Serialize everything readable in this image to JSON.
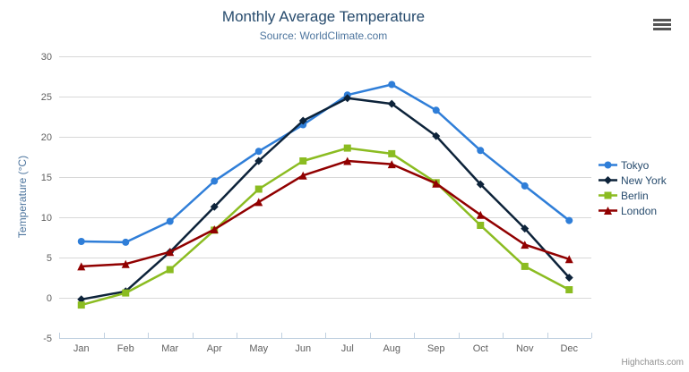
{
  "chart": {
    "title": "Monthly Average Temperature",
    "subtitle": "Source: WorldClimate.com",
    "yaxis_title": "Temperature (°C)",
    "credits": "Highcharts.com",
    "context_menu_icon": "hamburger-icon"
  },
  "colors": {
    "title": "#274b6d",
    "subtitle": "#4d759e",
    "axis_labels": "#606060",
    "axis_line": "#c0d0e0",
    "gridline": "#d8d8d8",
    "legend_text": "#274b6d",
    "credits": "#909090"
  },
  "chart_data": {
    "type": "line",
    "title": "Monthly Average Temperature",
    "subtitle": "Source: WorldClimate.com",
    "xlabel": "",
    "ylabel": "Temperature (°C)",
    "categories": [
      "Jan",
      "Feb",
      "Mar",
      "Apr",
      "May",
      "Jun",
      "Jul",
      "Aug",
      "Sep",
      "Oct",
      "Nov",
      "Dec"
    ],
    "ylim": [
      -5,
      30
    ],
    "ytick_step": 5,
    "grid": true,
    "legend_position": "right",
    "series": [
      {
        "name": "Tokyo",
        "color": "#2f7ed8",
        "marker": "circle",
        "values": [
          7.0,
          6.9,
          9.5,
          14.5,
          18.2,
          21.5,
          25.2,
          26.5,
          23.3,
          18.3,
          13.9,
          9.6
        ]
      },
      {
        "name": "New York",
        "color": "#0d233a",
        "marker": "diamond",
        "values": [
          -0.2,
          0.8,
          5.7,
          11.3,
          17.0,
          22.0,
          24.8,
          24.1,
          20.1,
          14.1,
          8.6,
          2.5
        ]
      },
      {
        "name": "Berlin",
        "color": "#8bbc21",
        "marker": "square",
        "values": [
          -0.9,
          0.6,
          3.5,
          8.4,
          13.5,
          17.0,
          18.6,
          17.9,
          14.3,
          9.0,
          3.9,
          1.0
        ]
      },
      {
        "name": "London",
        "color": "#910000",
        "marker": "triangle",
        "values": [
          3.9,
          4.2,
          5.7,
          8.5,
          11.9,
          15.2,
          17.0,
          16.6,
          14.2,
          10.3,
          6.6,
          4.8
        ]
      }
    ]
  }
}
